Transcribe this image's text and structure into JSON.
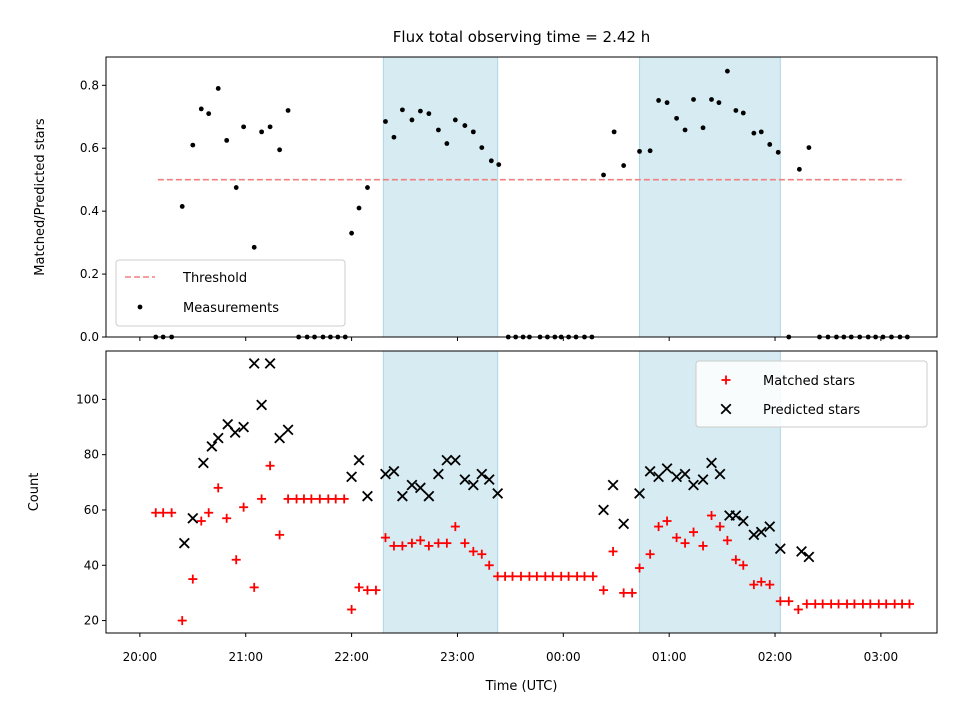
{
  "chart_data": [
    {
      "type": "scatter",
      "title": "Flux total observing time = 2.42 h",
      "ylabel": "Matched/Predicted stars",
      "xlabel": "",
      "xlim": [
        -0.32,
        7.53
      ],
      "ylim": [
        0,
        0.89
      ],
      "yticks": [
        0.0,
        0.2,
        0.4,
        0.6,
        0.8
      ],
      "ytick_labels": [
        "0.0",
        "0.2",
        "0.4",
        "0.6",
        "0.8"
      ],
      "shaded_regions": [
        [
          2.3,
          3.38
        ],
        [
          4.72,
          6.05
        ]
      ],
      "threshold": {
        "name": "Threshold",
        "y": 0.5,
        "x_range": [
          0.17,
          7.23
        ],
        "color": "#f08080"
      },
      "series": [
        {
          "name": "Measurements",
          "color": "#000000",
          "points": [
            [
              0.15,
              0.0
            ],
            [
              0.22,
              0.0
            ],
            [
              0.3,
              0.0
            ],
            [
              0.4,
              0.415
            ],
            [
              0.5,
              0.61
            ],
            [
              0.58,
              0.725
            ],
            [
              0.65,
              0.71
            ],
            [
              0.74,
              0.79
            ],
            [
              0.82,
              0.625
            ],
            [
              0.91,
              0.475
            ],
            [
              0.98,
              0.668
            ],
            [
              1.08,
              0.285
            ],
            [
              1.15,
              0.652
            ],
            [
              1.23,
              0.668
            ],
            [
              1.32,
              0.595
            ],
            [
              1.4,
              0.72
            ],
            [
              1.5,
              0.0
            ],
            [
              1.58,
              0.0
            ],
            [
              1.65,
              0.0
            ],
            [
              1.73,
              0.0
            ],
            [
              1.8,
              0.0
            ],
            [
              1.87,
              0.0
            ],
            [
              1.94,
              0.0
            ],
            [
              2.0,
              0.33
            ],
            [
              2.07,
              0.41
            ],
            [
              2.15,
              0.475
            ],
            [
              2.32,
              0.685
            ],
            [
              2.4,
              0.635
            ],
            [
              2.48,
              0.722
            ],
            [
              2.57,
              0.69
            ],
            [
              2.65,
              0.718
            ],
            [
              2.73,
              0.71
            ],
            [
              2.82,
              0.658
            ],
            [
              2.9,
              0.615
            ],
            [
              2.98,
              0.69
            ],
            [
              3.07,
              0.672
            ],
            [
              3.15,
              0.652
            ],
            [
              3.23,
              0.602
            ],
            [
              3.32,
              0.56
            ],
            [
              3.39,
              0.548
            ],
            [
              3.48,
              0.0
            ],
            [
              3.55,
              0.0
            ],
            [
              3.62,
              0.0
            ],
            [
              3.68,
              0.0
            ],
            [
              3.78,
              0.0
            ],
            [
              3.85,
              0.0
            ],
            [
              3.92,
              0.0
            ],
            [
              3.98,
              0.0
            ],
            [
              4.05,
              0.0
            ],
            [
              4.12,
              0.0
            ],
            [
              4.2,
              0.0
            ],
            [
              4.27,
              0.0
            ],
            [
              4.38,
              0.515
            ],
            [
              4.48,
              0.652
            ],
            [
              4.57,
              0.545
            ],
            [
              4.72,
              0.59
            ],
            [
              4.82,
              0.592
            ],
            [
              4.9,
              0.752
            ],
            [
              4.98,
              0.745
            ],
            [
              5.07,
              0.695
            ],
            [
              5.15,
              0.658
            ],
            [
              5.23,
              0.755
            ],
            [
              5.32,
              0.665
            ],
            [
              5.4,
              0.755
            ],
            [
              5.47,
              0.745
            ],
            [
              5.55,
              0.845
            ],
            [
              5.63,
              0.72
            ],
            [
              5.7,
              0.712
            ],
            [
              5.8,
              0.648
            ],
            [
              5.87,
              0.652
            ],
            [
              5.95,
              0.612
            ],
            [
              6.03,
              0.587
            ],
            [
              6.13,
              0.0
            ],
            [
              6.23,
              0.533
            ],
            [
              6.32,
              0.602
            ],
            [
              6.42,
              0.0
            ],
            [
              6.5,
              0.0
            ],
            [
              6.58,
              0.0
            ],
            [
              6.65,
              0.0
            ],
            [
              6.72,
              0.0
            ],
            [
              6.8,
              0.0
            ],
            [
              6.88,
              0.0
            ],
            [
              6.95,
              0.0
            ],
            [
              7.02,
              0.0
            ],
            [
              7.1,
              0.0
            ],
            [
              7.18,
              0.0
            ],
            [
              7.25,
              0.0
            ]
          ]
        }
      ],
      "legend": {
        "placement": "lower-left",
        "entries": [
          "Threshold",
          "Measurements"
        ]
      }
    },
    {
      "type": "scatter",
      "title": "",
      "ylabel": "Count",
      "xlabel": "Time (UTC)",
      "xlim": [
        -0.32,
        7.53
      ],
      "ylim": [
        15.5,
        117.5
      ],
      "yticks": [
        20,
        40,
        60,
        80,
        100
      ],
      "ytick_labels": [
        "20",
        "40",
        "60",
        "80",
        "100"
      ],
      "xticks": [
        0,
        1,
        2,
        3,
        4,
        5,
        6,
        7
      ],
      "xtick_labels": [
        "20:00",
        "21:00",
        "22:00",
        "23:00",
        "00:00",
        "01:00",
        "02:00",
        "03:00"
      ],
      "shaded_regions": [
        [
          2.3,
          3.38
        ],
        [
          4.72,
          6.05
        ]
      ],
      "series": [
        {
          "name": "Matched stars",
          "color": "#ff0000",
          "marker": "plus",
          "points": [
            [
              0.15,
              59
            ],
            [
              0.22,
              59
            ],
            [
              0.3,
              59
            ],
            [
              0.4,
              20
            ],
            [
              0.5,
              35
            ],
            [
              0.58,
              56
            ],
            [
              0.65,
              59
            ],
            [
              0.74,
              68
            ],
            [
              0.82,
              57
            ],
            [
              0.91,
              42
            ],
            [
              0.98,
              61
            ],
            [
              1.08,
              32
            ],
            [
              1.15,
              64
            ],
            [
              1.23,
              76
            ],
            [
              1.32,
              51
            ],
            [
              1.4,
              64
            ],
            [
              1.48,
              64
            ],
            [
              1.55,
              64
            ],
            [
              1.62,
              64
            ],
            [
              1.7,
              64
            ],
            [
              1.78,
              64
            ],
            [
              1.85,
              64
            ],
            [
              1.93,
              64
            ],
            [
              2.0,
              24
            ],
            [
              2.07,
              32
            ],
            [
              2.15,
              31
            ],
            [
              2.23,
              31
            ],
            [
              2.32,
              50
            ],
            [
              2.4,
              47
            ],
            [
              2.48,
              47
            ],
            [
              2.57,
              48
            ],
            [
              2.65,
              49
            ],
            [
              2.73,
              47
            ],
            [
              2.82,
              48
            ],
            [
              2.9,
              48
            ],
            [
              2.98,
              54
            ],
            [
              3.07,
              48
            ],
            [
              3.15,
              45
            ],
            [
              3.23,
              44
            ],
            [
              3.3,
              40
            ],
            [
              3.38,
              36
            ],
            [
              3.45,
              36
            ],
            [
              3.52,
              36
            ],
            [
              3.6,
              36
            ],
            [
              3.68,
              36
            ],
            [
              3.75,
              36
            ],
            [
              3.83,
              36
            ],
            [
              3.9,
              36
            ],
            [
              3.98,
              36
            ],
            [
              4.05,
              36
            ],
            [
              4.13,
              36
            ],
            [
              4.2,
              36
            ],
            [
              4.28,
              36
            ],
            [
              4.38,
              31
            ],
            [
              4.47,
              45
            ],
            [
              4.57,
              30
            ],
            [
              4.65,
              30
            ],
            [
              4.72,
              39
            ],
            [
              4.82,
              44
            ],
            [
              4.9,
              54
            ],
            [
              4.98,
              56
            ],
            [
              5.07,
              50
            ],
            [
              5.15,
              48
            ],
            [
              5.23,
              52
            ],
            [
              5.32,
              47
            ],
            [
              5.4,
              58
            ],
            [
              5.48,
              54
            ],
            [
              5.55,
              49
            ],
            [
              5.63,
              42
            ],
            [
              5.7,
              40
            ],
            [
              5.8,
              33
            ],
            [
              5.87,
              34
            ],
            [
              5.95,
              33
            ],
            [
              6.05,
              27
            ],
            [
              6.13,
              27
            ],
            [
              6.22,
              24
            ],
            [
              6.3,
              26
            ],
            [
              6.38,
              26
            ],
            [
              6.45,
              26
            ],
            [
              6.53,
              26
            ],
            [
              6.6,
              26
            ],
            [
              6.68,
              26
            ],
            [
              6.75,
              26
            ],
            [
              6.83,
              26
            ],
            [
              6.9,
              26
            ],
            [
              6.98,
              26
            ],
            [
              7.05,
              26
            ],
            [
              7.13,
              26
            ],
            [
              7.2,
              26
            ],
            [
              7.27,
              26
            ]
          ]
        },
        {
          "name": "Predicted stars",
          "color": "#000000",
          "marker": "cross",
          "points": [
            [
              0.42,
              48
            ],
            [
              0.5,
              57
            ],
            [
              0.6,
              77
            ],
            [
              0.68,
              83
            ],
            [
              0.74,
              86
            ],
            [
              0.83,
              91
            ],
            [
              0.9,
              88
            ],
            [
              0.98,
              90
            ],
            [
              1.08,
              113
            ],
            [
              1.15,
              98
            ],
            [
              1.23,
              113
            ],
            [
              1.32,
              86
            ],
            [
              1.4,
              89
            ],
            [
              2.0,
              72
            ],
            [
              2.07,
              78
            ],
            [
              2.15,
              65
            ],
            [
              2.32,
              73
            ],
            [
              2.4,
              74
            ],
            [
              2.48,
              65
            ],
            [
              2.57,
              69
            ],
            [
              2.65,
              68
            ],
            [
              2.73,
              65
            ],
            [
              2.82,
              73
            ],
            [
              2.9,
              78
            ],
            [
              2.98,
              78
            ],
            [
              3.07,
              71
            ],
            [
              3.15,
              69
            ],
            [
              3.23,
              73
            ],
            [
              3.3,
              71
            ],
            [
              3.38,
              66
            ],
            [
              4.38,
              60
            ],
            [
              4.47,
              69
            ],
            [
              4.57,
              55
            ],
            [
              4.72,
              66
            ],
            [
              4.82,
              74
            ],
            [
              4.9,
              72
            ],
            [
              4.98,
              75
            ],
            [
              5.07,
              72
            ],
            [
              5.15,
              73
            ],
            [
              5.23,
              69
            ],
            [
              5.32,
              71
            ],
            [
              5.4,
              77
            ],
            [
              5.48,
              73
            ],
            [
              5.57,
              58
            ],
            [
              5.63,
              58
            ],
            [
              5.7,
              56
            ],
            [
              5.8,
              51
            ],
            [
              5.87,
              52
            ],
            [
              5.95,
              54
            ],
            [
              6.05,
              46
            ],
            [
              6.25,
              45
            ],
            [
              6.32,
              43
            ]
          ]
        }
      ],
      "legend": {
        "placement": "upper-right",
        "entries": [
          "Matched stars",
          "Predicted stars"
        ]
      }
    }
  ]
}
